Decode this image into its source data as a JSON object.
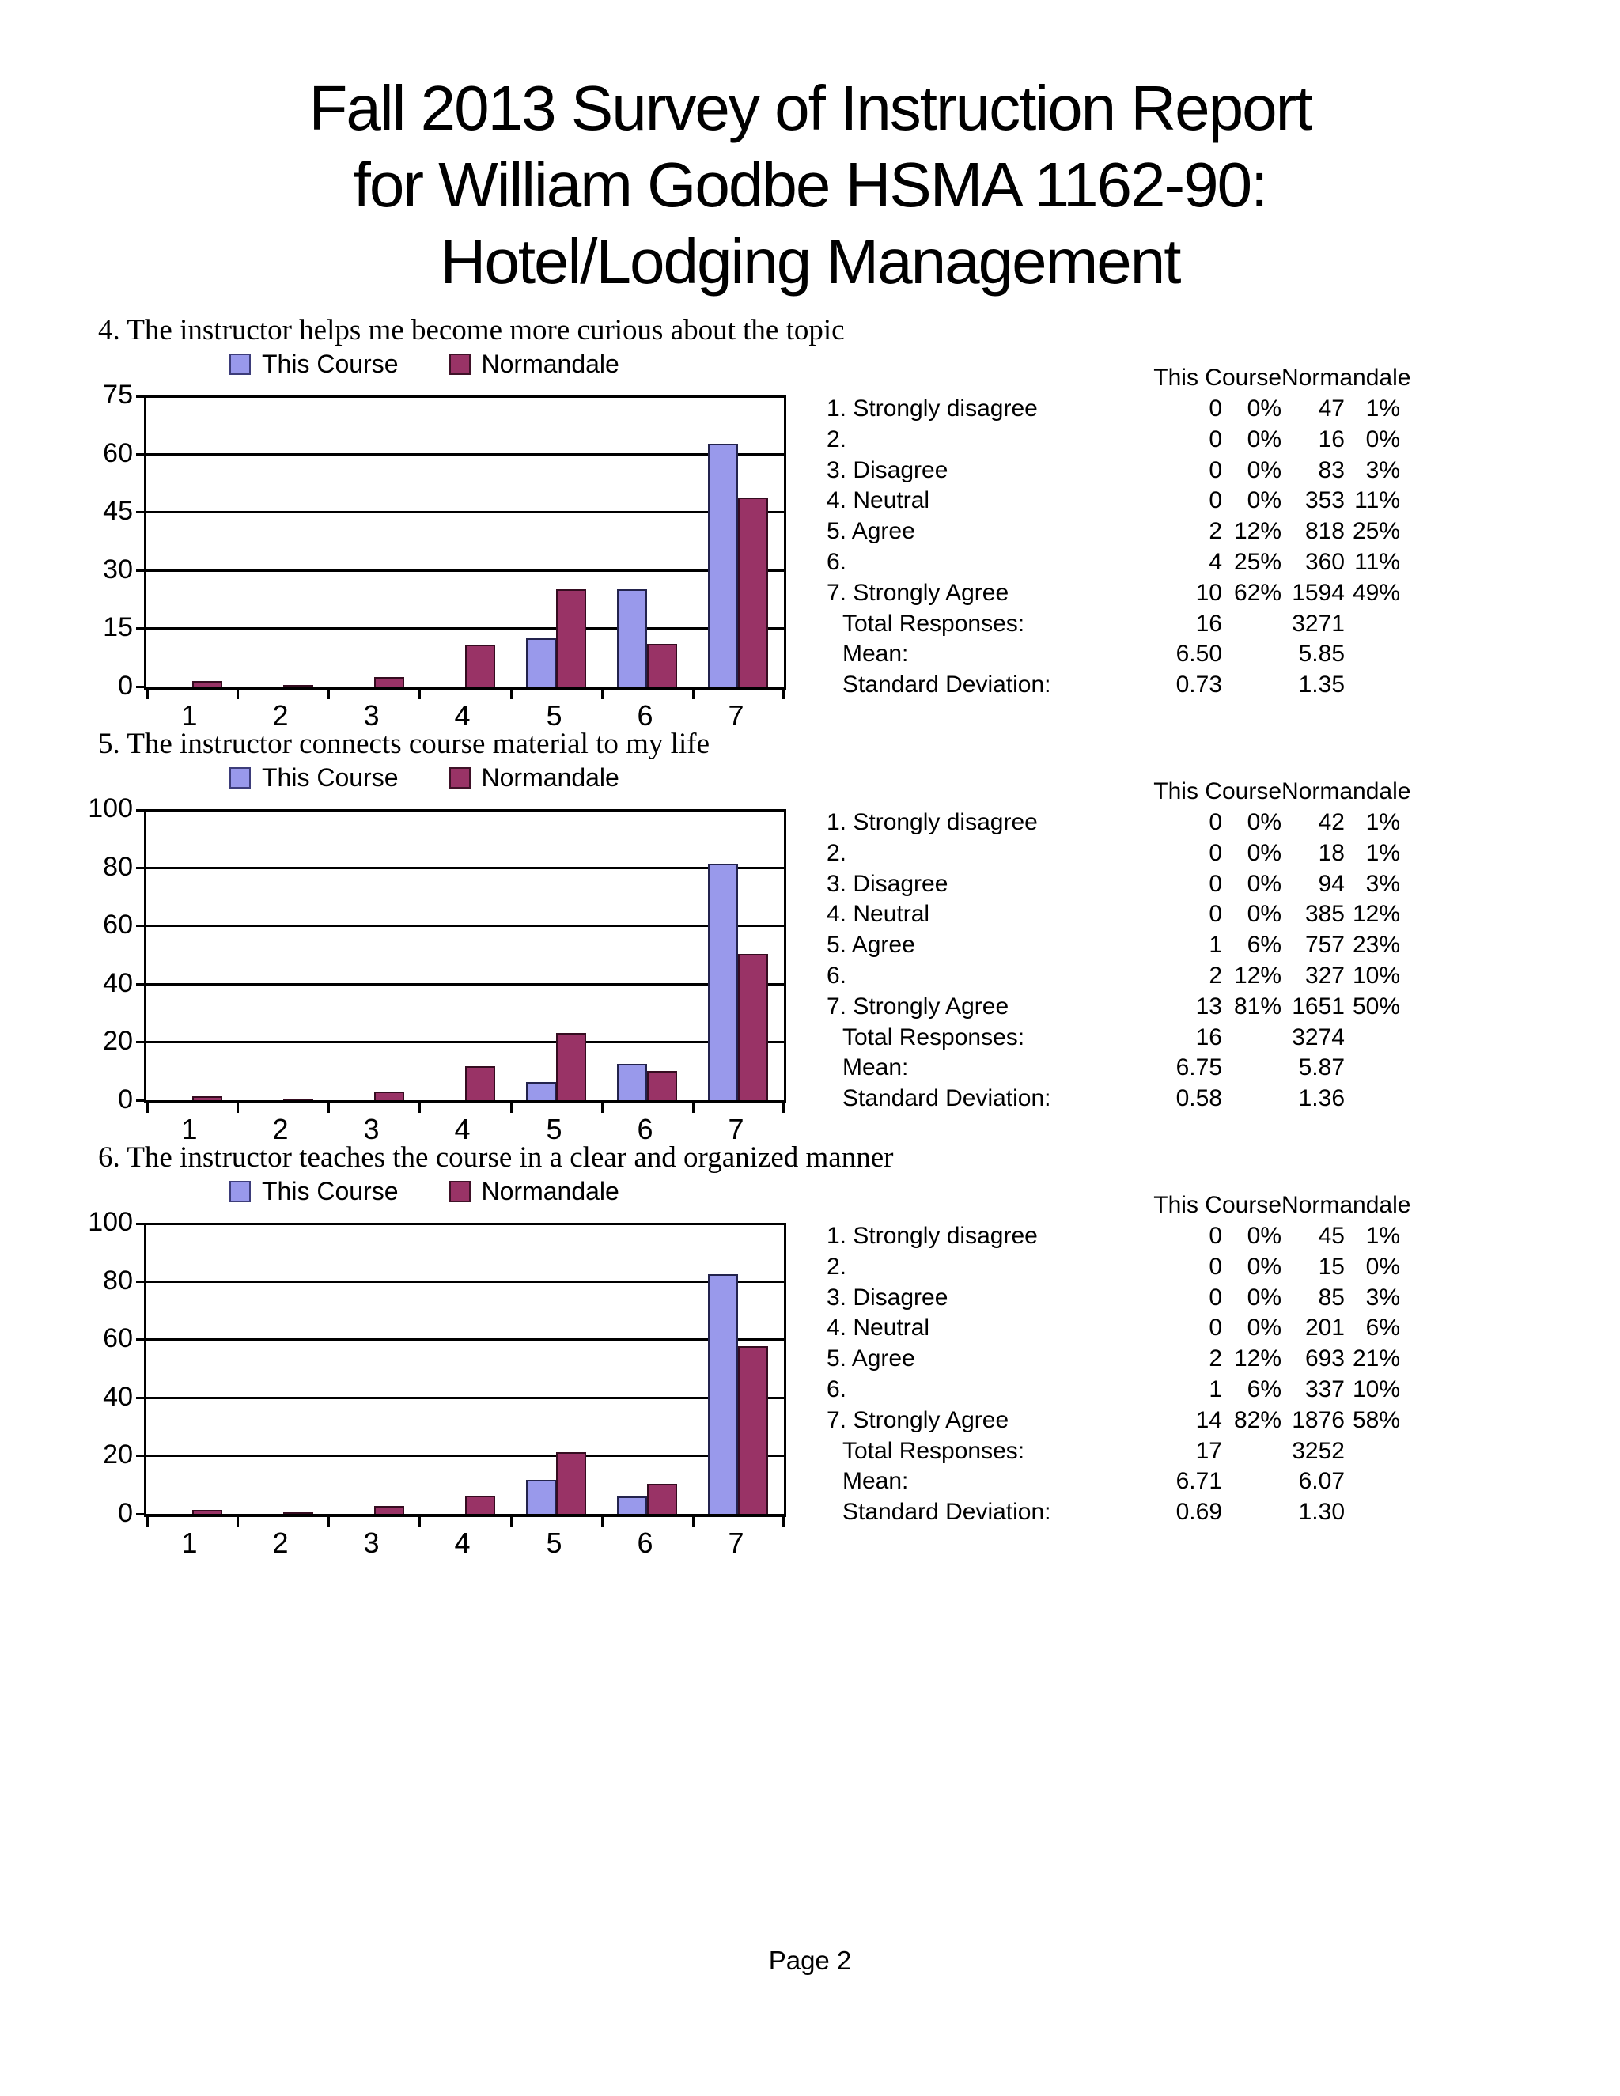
{
  "page": {
    "title_lines": [
      "Fall 2013 Survey of Instruction Report",
      "for William Godbe HSMA 1162-90:",
      "Hotel/Lodging Management"
    ],
    "footer": "Page 2"
  },
  "series_labels": {
    "this_course": "This Course",
    "normandale": "Normandale"
  },
  "colors": {
    "this_course": "#9999EB",
    "normandale": "#993366"
  },
  "questions": [
    {
      "heading": "4. The instructor helps me become more curious about the topic",
      "rows": [
        {
          "label": "1. Strongly disagree",
          "values": [
            "0",
            "0%",
            "47",
            "1%"
          ]
        },
        {
          "label": "2.",
          "values": [
            "0",
            "0%",
            "16",
            "0%"
          ]
        },
        {
          "label": "3. Disagree",
          "values": [
            "0",
            "0%",
            "83",
            "3%"
          ]
        },
        {
          "label": "4. Neutral",
          "values": [
            "0",
            "0%",
            "353",
            "11%"
          ]
        },
        {
          "label": "5. Agree",
          "values": [
            "2",
            "12%",
            "818",
            "25%"
          ]
        },
        {
          "label": "6.",
          "values": [
            "4",
            "25%",
            "360",
            "11%"
          ]
        },
        {
          "label": "7. Strongly Agree",
          "values": [
            "10",
            "62%",
            "1594",
            "49%"
          ]
        }
      ],
      "summary": [
        {
          "label": "Total Responses:",
          "this_course": "16",
          "normandale": "3271"
        },
        {
          "label": "Mean:",
          "this_course": "6.50",
          "normandale": "5.85"
        },
        {
          "label": "Standard Deviation:",
          "this_course": "0.73",
          "normandale": "1.35"
        }
      ]
    },
    {
      "heading": "5. The instructor connects course material to my life",
      "rows": [
        {
          "label": "1. Strongly disagree",
          "values": [
            "0",
            "0%",
            "42",
            "1%"
          ]
        },
        {
          "label": "2.",
          "values": [
            "0",
            "0%",
            "18",
            "1%"
          ]
        },
        {
          "label": "3. Disagree",
          "values": [
            "0",
            "0%",
            "94",
            "3%"
          ]
        },
        {
          "label": "4. Neutral",
          "values": [
            "0",
            "0%",
            "385",
            "12%"
          ]
        },
        {
          "label": "5. Agree",
          "values": [
            "1",
            "6%",
            "757",
            "23%"
          ]
        },
        {
          "label": "6.",
          "values": [
            "2",
            "12%",
            "327",
            "10%"
          ]
        },
        {
          "label": "7. Strongly Agree",
          "values": [
            "13",
            "81%",
            "1651",
            "50%"
          ]
        }
      ],
      "summary": [
        {
          "label": "Total Responses:",
          "this_course": "16",
          "normandale": "3274"
        },
        {
          "label": "Mean:",
          "this_course": "6.75",
          "normandale": "5.87"
        },
        {
          "label": "Standard Deviation:",
          "this_course": "0.58",
          "normandale": "1.36"
        }
      ]
    },
    {
      "heading": "6. The instructor teaches the course in a clear and organized manner",
      "rows": [
        {
          "label": "1. Strongly disagree",
          "values": [
            "0",
            "0%",
            "45",
            "1%"
          ]
        },
        {
          "label": "2.",
          "values": [
            "0",
            "0%",
            "15",
            "0%"
          ]
        },
        {
          "label": "3. Disagree",
          "values": [
            "0",
            "0%",
            "85",
            "3%"
          ]
        },
        {
          "label": "4. Neutral",
          "values": [
            "0",
            "0%",
            "201",
            "6%"
          ]
        },
        {
          "label": "5. Agree",
          "values": [
            "2",
            "12%",
            "693",
            "21%"
          ]
        },
        {
          "label": "6.",
          "values": [
            "1",
            "6%",
            "337",
            "10%"
          ]
        },
        {
          "label": "7. Strongly Agree",
          "values": [
            "14",
            "82%",
            "1876",
            "58%"
          ]
        }
      ],
      "summary": [
        {
          "label": "Total Responses:",
          "this_course": "17",
          "normandale": "3252"
        },
        {
          "label": "Mean:",
          "this_course": "6.71",
          "normandale": "6.07"
        },
        {
          "label": "Standard Deviation:",
          "this_course": "0.69",
          "normandale": "1.30"
        }
      ]
    }
  ],
  "chart_data": [
    {
      "type": "bar",
      "title": "4. The instructor helps me become more curious about the topic",
      "categories": [
        "1",
        "2",
        "3",
        "4",
        "5",
        "6",
        "7"
      ],
      "series": [
        {
          "name": "This Course",
          "values": [
            0,
            0,
            0,
            0,
            12.5,
            25,
            62.5
          ],
          "counts": [
            0,
            0,
            0,
            0,
            2,
            4,
            10
          ],
          "total": 16,
          "color": "#9999EB"
        },
        {
          "name": "Normandale",
          "values": [
            1.4,
            0.5,
            2.5,
            10.8,
            25,
            11,
            48.7
          ],
          "counts": [
            47,
            16,
            83,
            353,
            818,
            360,
            1594
          ],
          "total": 3271,
          "color": "#993366"
        }
      ],
      "xlabel": "",
      "ylabel": "",
      "units": "percent of responses",
      "ylim": [
        0,
        75
      ],
      "yticks": [
        0,
        15,
        30,
        45,
        60,
        75
      ],
      "grid": true,
      "legend_position": "top"
    },
    {
      "type": "bar",
      "title": "5. The instructor connects course material to my life",
      "categories": [
        "1",
        "2",
        "3",
        "4",
        "5",
        "6",
        "7"
      ],
      "series": [
        {
          "name": "This Course",
          "values": [
            0,
            0,
            0,
            0,
            6.3,
            12.5,
            81.3
          ],
          "counts": [
            0,
            0,
            0,
            0,
            1,
            2,
            13
          ],
          "total": 16,
          "color": "#9999EB"
        },
        {
          "name": "Normandale",
          "values": [
            1.3,
            0.5,
            2.9,
            11.8,
            23.1,
            10,
            50.4
          ],
          "counts": [
            42,
            18,
            94,
            385,
            757,
            327,
            1651
          ],
          "total": 3274,
          "color": "#993366"
        }
      ],
      "xlabel": "",
      "ylabel": "",
      "units": "percent of responses",
      "ylim": [
        0,
        100
      ],
      "yticks": [
        0,
        20,
        40,
        60,
        80,
        100
      ],
      "grid": true,
      "legend_position": "top"
    },
    {
      "type": "bar",
      "title": "6. The instructor teaches the course in a clear and organized manner",
      "categories": [
        "1",
        "2",
        "3",
        "4",
        "5",
        "6",
        "7"
      ],
      "series": [
        {
          "name": "This Course",
          "values": [
            0,
            0,
            0,
            0,
            11.8,
            5.9,
            82.4
          ],
          "counts": [
            0,
            0,
            0,
            0,
            2,
            1,
            14
          ],
          "total": 17,
          "color": "#9999EB"
        },
        {
          "name": "Normandale",
          "values": [
            1.4,
            0.5,
            2.6,
            6.2,
            21.3,
            10.4,
            57.7
          ],
          "counts": [
            45,
            15,
            85,
            201,
            693,
            337,
            1876
          ],
          "total": 3252,
          "color": "#993366"
        }
      ],
      "xlabel": "",
      "ylabel": "",
      "units": "percent of responses",
      "ylim": [
        0,
        100
      ],
      "yticks": [
        0,
        20,
        40,
        60,
        80,
        100
      ],
      "grid": true,
      "legend_position": "top"
    }
  ]
}
